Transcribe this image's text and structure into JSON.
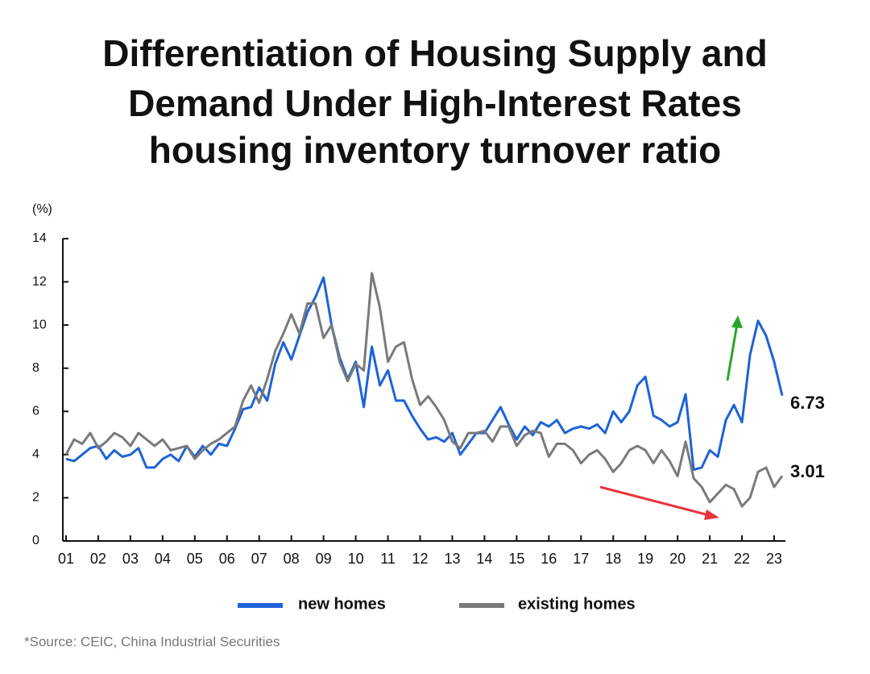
{
  "chart_data": {
    "type": "line",
    "title": [
      "Differentiation of Housing Supply and",
      "Demand Under High-Interest Rates",
      "housing inventory turnover ratio"
    ],
    "y_label": "(%)",
    "source": "*Source: CEIC, China Industrial Securities",
    "x": [
      1,
      1.25,
      1.5,
      1.75,
      2,
      2.25,
      2.5,
      2.75,
      3,
      3.25,
      3.5,
      3.75,
      4,
      4.25,
      4.5,
      4.75,
      5,
      5.25,
      5.5,
      5.75,
      6,
      6.25,
      6.5,
      6.75,
      7,
      7.25,
      7.5,
      7.75,
      8,
      8.25,
      8.5,
      8.75,
      9,
      9.25,
      9.5,
      9.75,
      10,
      10.25,
      10.5,
      10.75,
      11,
      11.25,
      11.5,
      11.75,
      12,
      12.25,
      12.5,
      12.75,
      13,
      13.25,
      13.5,
      13.75,
      14,
      14.25,
      14.5,
      14.75,
      15,
      15.25,
      15.5,
      15.75,
      16,
      16.25,
      16.5,
      16.75,
      17,
      17.25,
      17.5,
      17.75,
      18,
      18.25,
      18.5,
      18.75,
      19,
      19.25,
      19.5,
      19.75,
      20,
      20.25,
      20.5,
      20.75,
      21,
      21.25,
      21.5,
      21.75,
      22,
      22.25,
      22.5,
      22.75,
      23,
      23.25
    ],
    "series": [
      {
        "name": "new homes",
        "color": "#1e63d6",
        "values": [
          3.8,
          3.7,
          4.0,
          4.3,
          4.4,
          3.8,
          4.2,
          3.9,
          4.0,
          4.3,
          3.4,
          3.4,
          3.8,
          4.0,
          3.7,
          4.4,
          3.9,
          4.4,
          4.0,
          4.5,
          4.4,
          5.2,
          6.1,
          6.2,
          7.1,
          6.5,
          8.2,
          9.2,
          8.4,
          9.5,
          10.6,
          11.3,
          12.2,
          10.0,
          8.5,
          7.5,
          8.3,
          6.2,
          9.0,
          7.2,
          7.9,
          6.5,
          6.5,
          5.8,
          5.2,
          4.7,
          4.8,
          4.6,
          5.0,
          4.0,
          4.5,
          5.0,
          5.0,
          5.6,
          6.2,
          5.4,
          4.7,
          5.3,
          4.9,
          5.5,
          5.3,
          5.6,
          5.0,
          5.2,
          5.3,
          5.2,
          5.4,
          5.0,
          6.0,
          5.5,
          6.0,
          7.2,
          7.6,
          5.8,
          5.6,
          5.3,
          5.5,
          6.8,
          3.3,
          3.4,
          4.2,
          3.9,
          5.6,
          6.3,
          5.5,
          8.6,
          10.2,
          9.5,
          8.3,
          6.73
        ]
      },
      {
        "name": "existing homes",
        "color": "#7a7a7a",
        "values": [
          4.0,
          4.7,
          4.5,
          5.0,
          4.3,
          4.6,
          5.0,
          4.8,
          4.4,
          5.0,
          4.7,
          4.4,
          4.7,
          4.2,
          4.3,
          4.4,
          3.8,
          4.2,
          4.5,
          4.7,
          5.0,
          5.3,
          6.5,
          7.2,
          6.4,
          7.5,
          8.8,
          9.6,
          10.5,
          9.6,
          11.0,
          11.0,
          9.4,
          10.0,
          8.3,
          7.4,
          8.2,
          7.9,
          12.4,
          10.8,
          8.3,
          9.0,
          9.2,
          7.5,
          6.3,
          6.7,
          6.2,
          5.6,
          4.6,
          4.3,
          5.0,
          5.0,
          5.1,
          4.6,
          5.3,
          5.3,
          4.4,
          4.9,
          5.1,
          5.0,
          3.9,
          4.5,
          4.5,
          4.2,
          3.6,
          4.0,
          4.2,
          3.8,
          3.2,
          3.6,
          4.2,
          4.4,
          4.2,
          3.6,
          4.2,
          3.7,
          3.0,
          4.6,
          2.9,
          2.5,
          1.8,
          2.2,
          2.6,
          2.4,
          1.6,
          2.0,
          3.2,
          3.4,
          2.5,
          3.01
        ]
      }
    ],
    "xlim": [
      0.9,
      23.35
    ],
    "xticks": [
      {
        "value": 1,
        "label": "01"
      },
      {
        "value": 2,
        "label": "02"
      },
      {
        "value": 3,
        "label": "03"
      },
      {
        "value": 4,
        "label": "04"
      },
      {
        "value": 5,
        "label": "05"
      },
      {
        "value": 6,
        "label": "06"
      },
      {
        "value": 7,
        "label": "07"
      },
      {
        "value": 8,
        "label": "08"
      },
      {
        "value": 9,
        "label": "09"
      },
      {
        "value": 10,
        "label": "10"
      },
      {
        "value": 11,
        "label": "11"
      },
      {
        "value": 12,
        "label": "12"
      },
      {
        "value": 13,
        "label": "13"
      },
      {
        "value": 14,
        "label": "14"
      },
      {
        "value": 15,
        "label": "15"
      },
      {
        "value": 16,
        "label": "16"
      },
      {
        "value": 17,
        "label": "17"
      },
      {
        "value": 18,
        "label": "18"
      },
      {
        "value": 19,
        "label": "19"
      },
      {
        "value": 20,
        "label": "20"
      },
      {
        "value": 21,
        "label": "21"
      },
      {
        "value": 22,
        "label": "22"
      },
      {
        "value": 23,
        "label": "23"
      }
    ],
    "ylim": [
      0,
      14
    ],
    "yticks": [
      0,
      2,
      4,
      6,
      8,
      10,
      12,
      14
    ],
    "grid": false
  }
}
